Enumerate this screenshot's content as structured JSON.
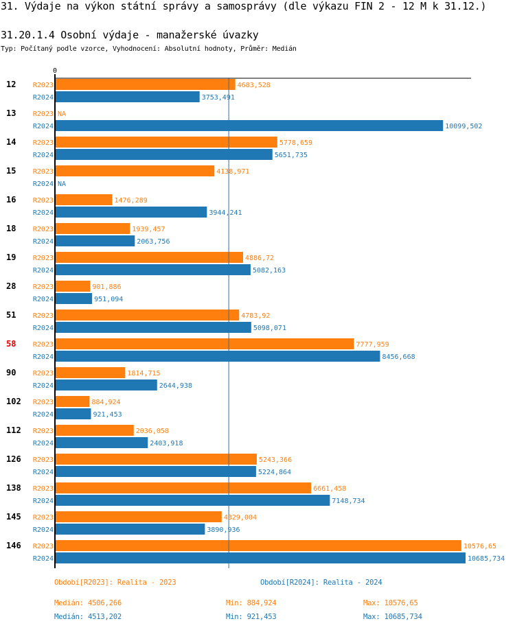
{
  "header": {
    "title": "31. Výdaje na výkon státní správy a samosprávy (dle výkazu FIN 2 - 12 M k 31.12.)",
    "subtitle": "31.20.1.4 Osobní výdaje - manažerské úvazky",
    "description": "Typ: Počítaný podle vzorce, Vyhodnocení: Absolutní hodnoty, Průměr: Medián"
  },
  "colors": {
    "R2023": "#ff7f0e",
    "R2024": "#1f77b4",
    "highlight": "#e00000",
    "axis": "#000000"
  },
  "chart_data": {
    "type": "bar",
    "orientation": "horizontal",
    "title": "31.20.1.4 Osobní výdaje - manažerské úvazky",
    "xlabel": "",
    "ylabel": "",
    "x_tick_labels": [
      "0"
    ],
    "xlim": [
      0,
      10685.734
    ],
    "grid": false,
    "median_line": {
      "series": "R2024",
      "value": 4513.202
    },
    "highlighted_category": "58",
    "categories": [
      "12",
      "13",
      "14",
      "15",
      "16",
      "18",
      "19",
      "28",
      "51",
      "58",
      "90",
      "102",
      "112",
      "126",
      "138",
      "145",
      "146"
    ],
    "series": [
      {
        "name": "R2023",
        "values": [
          4683.528,
          null,
          5778.659,
          4138.971,
          1476.289,
          1939.457,
          4886.72,
          901.886,
          4783.92,
          7777.959,
          1814.715,
          884.924,
          2036.058,
          5243.366,
          6661.458,
          4329.004,
          10576.65
        ],
        "labels": [
          "4683,528",
          "NA",
          "5778,659",
          "4138,971",
          "1476,289",
          "1939,457",
          "4886,72",
          "901,886",
          "4783,92",
          "7777,959",
          "1814,715",
          "884,924",
          "2036,058",
          "5243,366",
          "6661,458",
          "4329,004",
          "10576,65"
        ]
      },
      {
        "name": "R2024",
        "values": [
          3753.491,
          10099.502,
          5651.735,
          null,
          3944.241,
          2063.756,
          5082.163,
          951.094,
          5098.071,
          8456.668,
          2644.938,
          921.453,
          2403.918,
          5224.864,
          7148.734,
          3890.936,
          10685.734
        ],
        "labels": [
          "3753,491",
          "10099,502",
          "5651,735",
          "NA",
          "3944,241",
          "2063,756",
          "5082,163",
          "951,094",
          "5098,071",
          "8456,668",
          "2644,938",
          "921,453",
          "2403,918",
          "5224,864",
          "7148,734",
          "3890,936",
          "10685,734"
        ]
      }
    ]
  },
  "legend": {
    "R2023": "Období[R2023]: Realita - 2023",
    "R2024": "Období[R2024]: Realita - 2024"
  },
  "stats": {
    "R2023": {
      "median": "Medián: 4506,266",
      "min": "Min: 884,924",
      "max": "Max: 10576,65"
    },
    "R2024": {
      "median": "Medián: 4513,202",
      "min": "Min: 921,453",
      "max": "Max: 10685,734"
    }
  }
}
